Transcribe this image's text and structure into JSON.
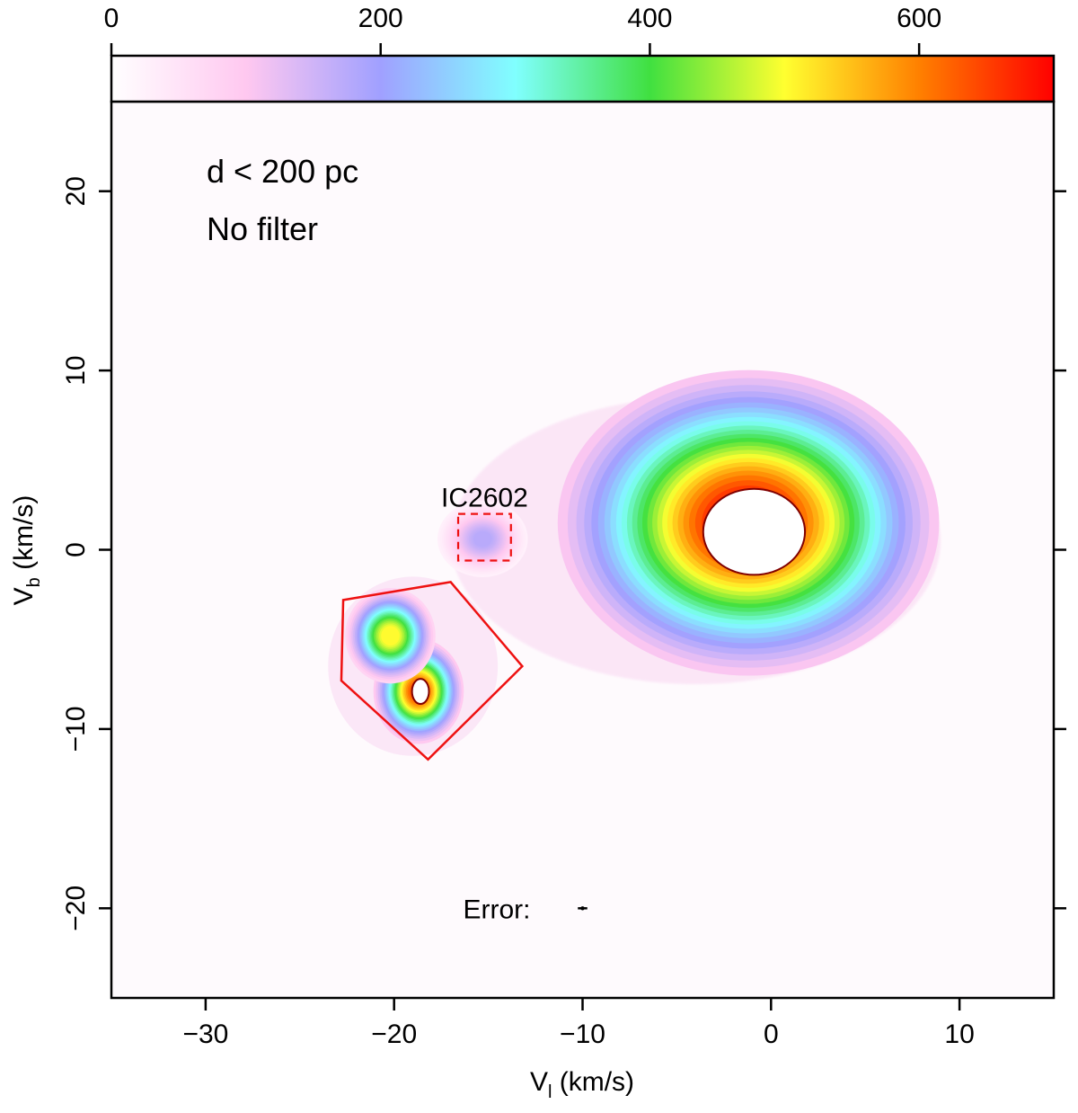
{
  "chart_data": {
    "type": "heatmap",
    "title": "",
    "xlabel": "V",
    "xlabel_sub": "l",
    "xlabel_unit": " (km/s)",
    "ylabel": "V",
    "ylabel_sub": "b",
    "ylabel_unit": " (km/s)",
    "xlim": [
      -35,
      15
    ],
    "ylim": [
      -25,
      25
    ],
    "x_ticks": [
      -30,
      -20,
      -10,
      0,
      10
    ],
    "x_tick_labels": [
      "−30",
      "−20",
      "−10",
      "0",
      "10"
    ],
    "y_ticks": [
      -20,
      -10,
      0,
      10,
      20
    ],
    "y_tick_labels": [
      "−20",
      "−10",
      "0",
      "10",
      "20"
    ],
    "colorbar": {
      "range": [
        0,
        700
      ],
      "ticks": [
        0,
        200,
        400,
        600
      ],
      "tick_labels": [
        "0",
        "200",
        "400",
        "600"
      ],
      "colors": [
        "#ffffff",
        "#ffc8f0",
        "#a0a0ff",
        "#80ffff",
        "#40e040",
        "#ffff30",
        "#ff8000",
        "#ff0000"
      ]
    },
    "annotations": {
      "line1": "d < 200 pc",
      "line2": "No filter",
      "ic_label": "IC2602",
      "error_label": "Error:"
    },
    "clusters": [
      {
        "x": -1.2,
        "y": 1.5,
        "peak": 700,
        "sx": 3.8,
        "sy": 3.2
      },
      {
        "x": -18.7,
        "y": -7.9,
        "peak": 650,
        "sx": 0.9,
        "sy": 1.1
      },
      {
        "x": -20.2,
        "y": -4.8,
        "peak": 520,
        "sx": 0.9,
        "sy": 1.0
      },
      {
        "x": -15.3,
        "y": 0.6,
        "peak": 180,
        "sx": 0.9,
        "sy": 0.8
      }
    ],
    "polygon": [
      [
        -22.7,
        -2.8
      ],
      [
        -17.0,
        -1.8
      ],
      [
        -13.2,
        -6.5
      ],
      [
        -18.2,
        -11.7
      ],
      [
        -22.8,
        -7.3
      ]
    ],
    "ic_box": [
      [
        -16.6,
        -0.6
      ],
      [
        -13.8,
        2.0
      ]
    ],
    "error_bar": {
      "x": -10.0,
      "y": -20.0,
      "dx": 0.25,
      "dy": 0.0
    },
    "grid": false
  }
}
